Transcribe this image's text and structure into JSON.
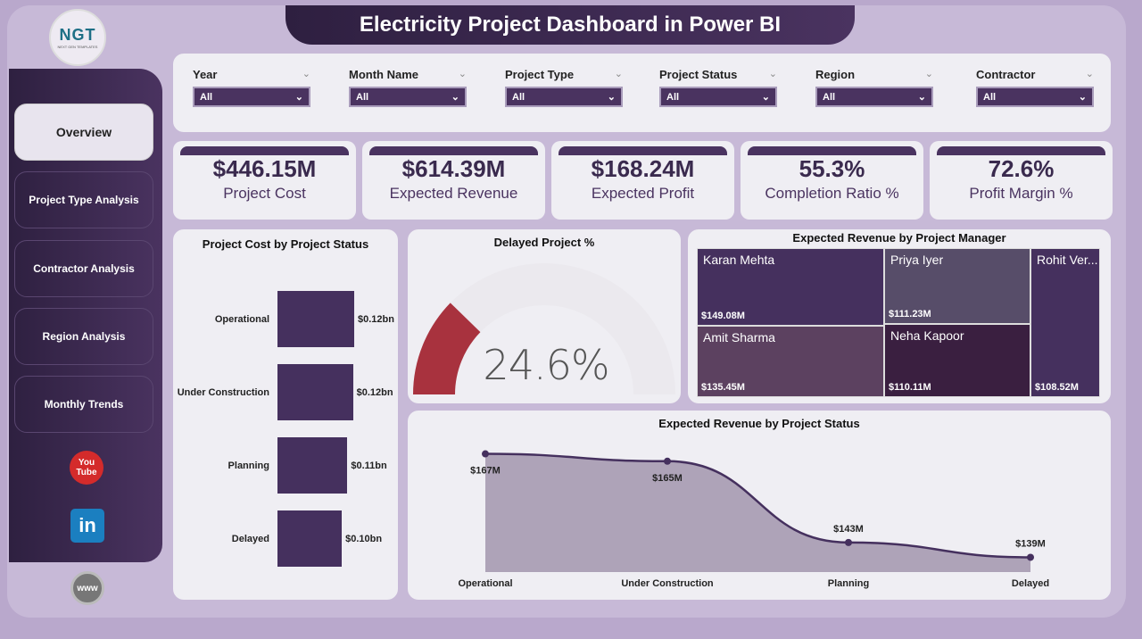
{
  "title": "Electricity Project Dashboard in Power BI",
  "logo": {
    "text": "NGT",
    "subtext": "NEXT GEN TEMPLATES"
  },
  "nav": [
    {
      "label": "Overview",
      "active": true
    },
    {
      "label": "Project Type Analysis"
    },
    {
      "label": "Contractor Analysis"
    },
    {
      "label": "Region Analysis"
    },
    {
      "label": "Monthly Trends"
    }
  ],
  "social": {
    "youtube": "You Tube",
    "linkedin": "in",
    "web": "www"
  },
  "filters": [
    {
      "label": "Year",
      "value": "All"
    },
    {
      "label": "Month Name",
      "value": "All"
    },
    {
      "label": "Project Type",
      "value": "All"
    },
    {
      "label": "Project Status",
      "value": "All"
    },
    {
      "label": "Region",
      "value": "All"
    },
    {
      "label": "Contractor",
      "value": "All"
    }
  ],
  "kpis": [
    {
      "value": "$446.15M",
      "label": "Project Cost"
    },
    {
      "value": "$614.39M",
      "label": "Expected Revenue"
    },
    {
      "value": "$168.24M",
      "label": "Expected Profit"
    },
    {
      "value": "55.3%",
      "label": "Completion Ratio %"
    },
    {
      "value": "72.6%",
      "label": "Profit Margin %"
    }
  ],
  "colors": {
    "primary": "#4a3360",
    "gauge": "#a8323e"
  },
  "chart_data": [
    {
      "type": "bar",
      "title": "Project Cost by Project Status",
      "categories": [
        "Operational",
        "Under Construction",
        "Planning",
        "Delayed"
      ],
      "values": [
        0.124,
        0.122,
        0.113,
        0.104
      ],
      "data_labels": [
        "$0.12bn",
        "$0.12bn",
        "$0.11bn",
        "$0.10bn"
      ],
      "orientation": "horizontal"
    },
    {
      "type": "gauge",
      "title": "Delayed Project %",
      "value": 24.6,
      "display": "24.6%",
      "min": 0,
      "max": 100
    },
    {
      "type": "treemap",
      "title": "Expected Revenue by Project Manager",
      "items": [
        {
          "name": "Karan Mehta",
          "value": 149.08,
          "label": "$149.08M",
          "color": "#45305e"
        },
        {
          "name": "Amit Sharma",
          "value": 135.45,
          "label": "$135.45M",
          "color": "#5c4160"
        },
        {
          "name": "Priya Iyer",
          "value": 111.23,
          "label": "$111.23M",
          "color": "#574d69"
        },
        {
          "name": "Neha Kapoor",
          "value": 110.11,
          "label": "$110.11M",
          "color": "#3a1f40"
        },
        {
          "name": "Rohit Ver...",
          "value": 108.52,
          "label": "$108.52M",
          "color": "#45305e"
        }
      ]
    },
    {
      "type": "area",
      "title": "Expected Revenue by Project Status",
      "categories": [
        "Operational",
        "Under Construction",
        "Planning",
        "Delayed"
      ],
      "values": [
        167,
        165,
        143,
        139
      ],
      "data_labels": [
        "$167M",
        "$165M",
        "$143M",
        "$139M"
      ]
    }
  ]
}
